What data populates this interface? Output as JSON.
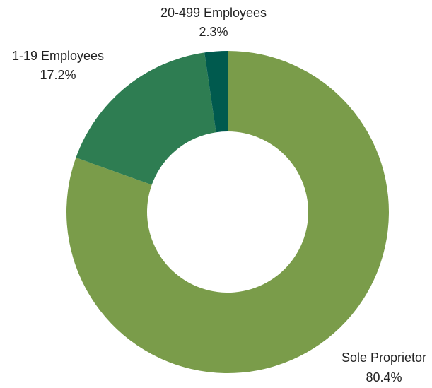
{
  "chart_data": {
    "type": "pie",
    "donut": true,
    "title": "",
    "legend": "none",
    "start_angle_deg": 0,
    "direction": "clockwise",
    "slices": [
      {
        "label": "Sole Proprietor",
        "value": 80.4,
        "value_label": "80.4%",
        "color": "#7a9c4a"
      },
      {
        "label": "1-19 Employees",
        "value": 17.2,
        "value_label": "17.2%",
        "color": "#2e7d52"
      },
      {
        "label": "20-499 Employees",
        "value": 2.3,
        "value_label": "2.3%",
        "color": "#005a4e"
      }
    ]
  }
}
